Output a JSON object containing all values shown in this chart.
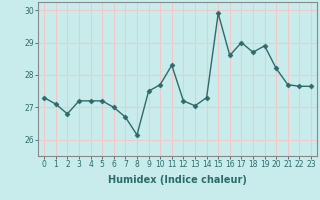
{
  "x": [
    0,
    1,
    2,
    3,
    4,
    5,
    6,
    7,
    8,
    9,
    10,
    11,
    12,
    13,
    14,
    15,
    16,
    17,
    18,
    19,
    20,
    21,
    22,
    23
  ],
  "y": [
    27.3,
    27.1,
    26.8,
    27.2,
    27.2,
    27.2,
    27.0,
    26.7,
    26.15,
    27.5,
    27.7,
    28.3,
    27.2,
    27.05,
    27.3,
    29.9,
    28.6,
    29.0,
    28.7,
    28.9,
    28.2,
    27.7,
    27.65,
    27.65
  ],
  "line_color": "#2d6b6b",
  "marker": "D",
  "markersize": 2.5,
  "linewidth": 1.0,
  "bg_color": "#c8ecec",
  "grid_color": "#f0c8c8",
  "spine_color": "#888888",
  "xlabel": "Humidex (Indice chaleur)",
  "ylim": [
    25.5,
    30.25
  ],
  "xlim": [
    -0.5,
    23.5
  ],
  "yticks": [
    26,
    27,
    28,
    29,
    30
  ],
  "xticks": [
    0,
    1,
    2,
    3,
    4,
    5,
    6,
    7,
    8,
    9,
    10,
    11,
    12,
    13,
    14,
    15,
    16,
    17,
    18,
    19,
    20,
    21,
    22,
    23
  ],
  "tick_fontsize": 5.5,
  "label_fontsize": 7
}
